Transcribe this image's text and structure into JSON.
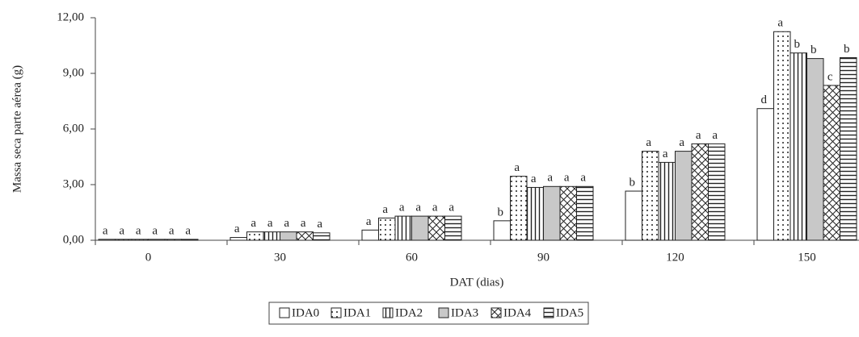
{
  "chart_data": {
    "type": "bar",
    "x_label": "DAT (dias)",
    "y_label": "Massa seca parte aérea (g)",
    "categories": [
      "0",
      "30",
      "60",
      "90",
      "120",
      "150"
    ],
    "ylim": [
      0,
      12
    ],
    "yticks": [
      {
        "value": 0,
        "label": "0,00"
      },
      {
        "value": 3,
        "label": "3,00"
      },
      {
        "value": 6,
        "label": "6,00"
      },
      {
        "value": 9,
        "label": "9,00"
      },
      {
        "value": 12,
        "label": "12,00"
      }
    ],
    "grid": false,
    "series": [
      {
        "name": "IDA0",
        "color": "#ffffff",
        "pattern": "none",
        "values": [
          0.05,
          0.15,
          0.55,
          1.05,
          2.65,
          7.1
        ],
        "letters": [
          "a",
          "a",
          "a",
          "b",
          "b",
          "d"
        ]
      },
      {
        "name": "IDA1",
        "color": "#ffffff",
        "pattern": "dots",
        "values": [
          0.05,
          0.45,
          1.2,
          3.45,
          4.8,
          11.25
        ],
        "letters": [
          "a",
          "a",
          "a",
          "a",
          "a",
          "a"
        ]
      },
      {
        "name": "IDA2",
        "color": "#ffffff",
        "pattern": "vertical",
        "values": [
          0.05,
          0.45,
          1.3,
          2.85,
          4.2,
          10.1
        ],
        "letters": [
          "a",
          "a",
          "a",
          "a",
          "a",
          "b"
        ]
      },
      {
        "name": "IDA3",
        "color": "#c8c8c8",
        "pattern": "none",
        "values": [
          0.05,
          0.45,
          1.3,
          2.9,
          4.8,
          9.8
        ],
        "letters": [
          "a",
          "a",
          "a",
          "a",
          "a",
          "b"
        ]
      },
      {
        "name": "IDA4",
        "color": "#ffffff",
        "pattern": "crosshatch",
        "values": [
          0.05,
          0.45,
          1.3,
          2.9,
          5.2,
          8.35
        ],
        "letters": [
          "a",
          "a",
          "a",
          "a",
          "a",
          "c"
        ]
      },
      {
        "name": "IDA5",
        "color": "#ffffff",
        "pattern": "horizontal",
        "values": [
          0.05,
          0.4,
          1.3,
          2.9,
          5.2,
          9.85
        ],
        "letters": [
          "a",
          "a",
          "a",
          "a",
          "a",
          "b"
        ]
      }
    ]
  }
}
